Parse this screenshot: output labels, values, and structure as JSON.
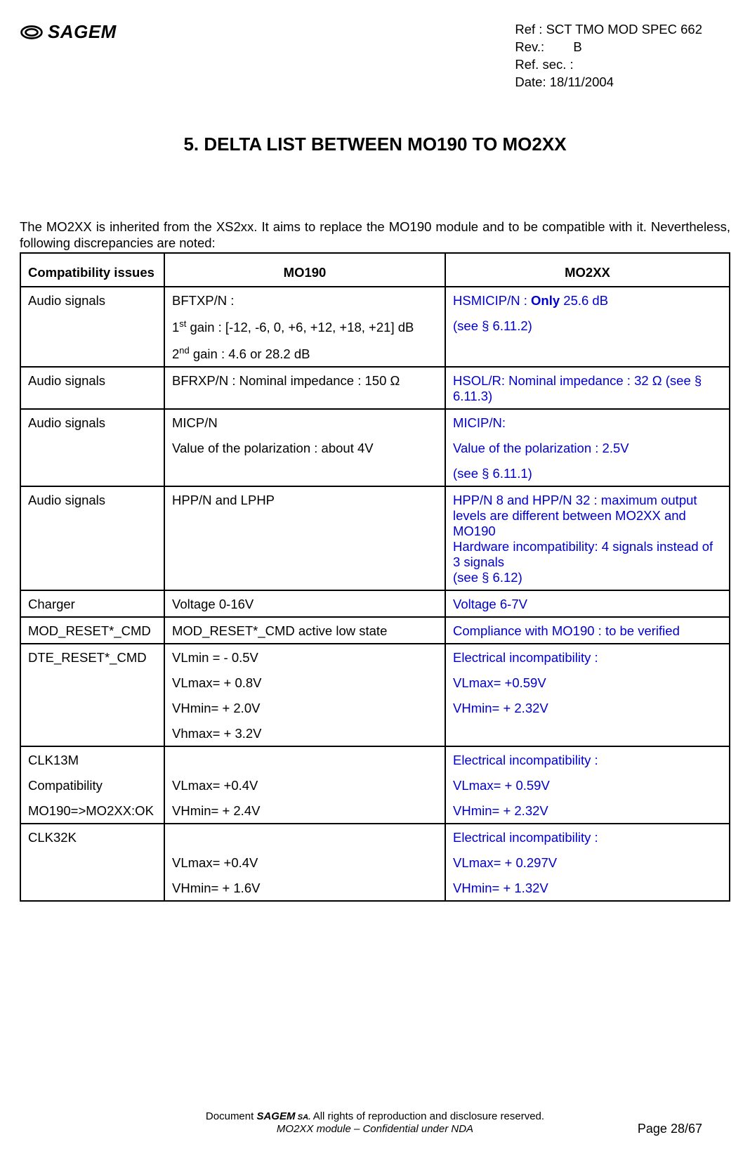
{
  "header": {
    "brand": "SAGEM",
    "ref_label": "Ref :",
    "ref_value": "SCT TMO MOD SPEC 662",
    "rev_label": "Rev.:",
    "rev_value": "B",
    "refsec_label": "Ref. sec. :",
    "refsec_value": "",
    "date_label": "Date:",
    "date_value": "18/11/2004"
  },
  "section_title": "5.  DELTA LIST BETWEEN MO190 TO MO2XX",
  "intro": "The MO2XX is inherited from the XS2xx. It aims to replace the MO190 module and to be compatible with it. Nevertheless, following discrepancies are noted:",
  "table": {
    "headers": {
      "issue": "Compatibility issues",
      "mo190": "MO190",
      "mo2xx": "MO2XX"
    },
    "rows": [
      {
        "issue": "Audio signals",
        "mo190_lines": [
          "BFTXP/N :",
          "1<sup>st</sup> gain : [-12, -6, 0, +6, +12, +18, +21] dB",
          "2<sup>nd</sup> gain : 4.6 or 28.2 dB"
        ],
        "mo2xx_lines": [
          "HSMICIP/N : <span class=\"bold\">Only</span> 25.6 dB",
          "(see § 6.11.2)"
        ],
        "mo2xx_blue": true
      },
      {
        "issue": "Audio signals",
        "mo190_lines": [
          "BFRXP/N : Nominal impedance : 150 Ω"
        ],
        "mo2xx_lines": [
          "HSOL/R: Nominal impedance : 32 Ω (see § 6.11.3)"
        ],
        "mo2xx_blue": true
      },
      {
        "issue": "Audio signals",
        "mo190_lines": [
          "MICP/N",
          "Value of the polarization : about 4V"
        ],
        "mo2xx_lines": [
          "MICIP/N:",
          "Value of the polarization : 2.5V",
          "(see § 6.11.1)"
        ],
        "mo2xx_blue": true
      },
      {
        "issue": "Audio signals",
        "mo190_lines": [
          "HPP/N and LPHP"
        ],
        "mo2xx_lines": [
          "HPP/N 8 and HPP/N 32 : maximum output levels are different between MO2XX and MO190<br>Hardware incompatibility: 4 signals instead of 3 signals<br>(see § 6.12)"
        ],
        "mo2xx_blue": true,
        "tight": true
      },
      {
        "issue": "Charger",
        "mo190_lines": [
          "Voltage 0-16V"
        ],
        "mo2xx_lines": [
          "Voltage 6-7V"
        ],
        "mo2xx_blue": true
      },
      {
        "issue": "MOD_RESET*_CMD",
        "mo190_lines": [
          "MOD_RESET*_CMD active low state"
        ],
        "mo2xx_lines": [
          "Compliance with MO190 : to be verified"
        ],
        "mo2xx_blue": true
      },
      {
        "issue": "DTE_RESET*_CMD",
        "mo190_lines": [
          "VLmin = - 0.5V",
          "VLmax= + 0.8V",
          "VHmin= + 2.0V",
          "Vhmax= + 3.2V"
        ],
        "mo2xx_lines": [
          "Electrical incompatibility :",
          "VLmax= +0.59V",
          "VHmin= + 2.32V"
        ],
        "mo2xx_blue": true
      },
      {
        "issue_lines": [
          "CLK13M",
          "Compatibility",
          "MO190=>MO2XX:OK"
        ],
        "mo190_lines": [
          "",
          "VLmax= +0.4V",
          "VHmin= + 2.4V"
        ],
        "mo2xx_lines": [
          "Electrical incompatibility :",
          "VLmax= + 0.59V",
          "VHmin= + 2.32V"
        ],
        "mo2xx_blue": true
      },
      {
        "issue": "CLK32K",
        "mo190_lines": [
          "",
          "VLmax= +0.4V",
          "VHmin= + 1.6V"
        ],
        "mo2xx_lines": [
          "Electrical incompatibility :",
          "VLmax= + 0.297V",
          "VHmin= + 1.32V"
        ],
        "mo2xx_blue": true
      }
    ]
  },
  "footer": {
    "line1_prefix": "Document ",
    "line1_brand": "SAGEM",
    "line1_sa": " SA.",
    "line1_suffix": "  All rights of reproduction and disclosure reserved.",
    "line2": "MO2XX module – Confidential under NDA",
    "page": "Page 28/67"
  },
  "colors": {
    "text": "#000000",
    "blue": "#0000cc",
    "background": "#ffffff",
    "border": "#000000"
  }
}
